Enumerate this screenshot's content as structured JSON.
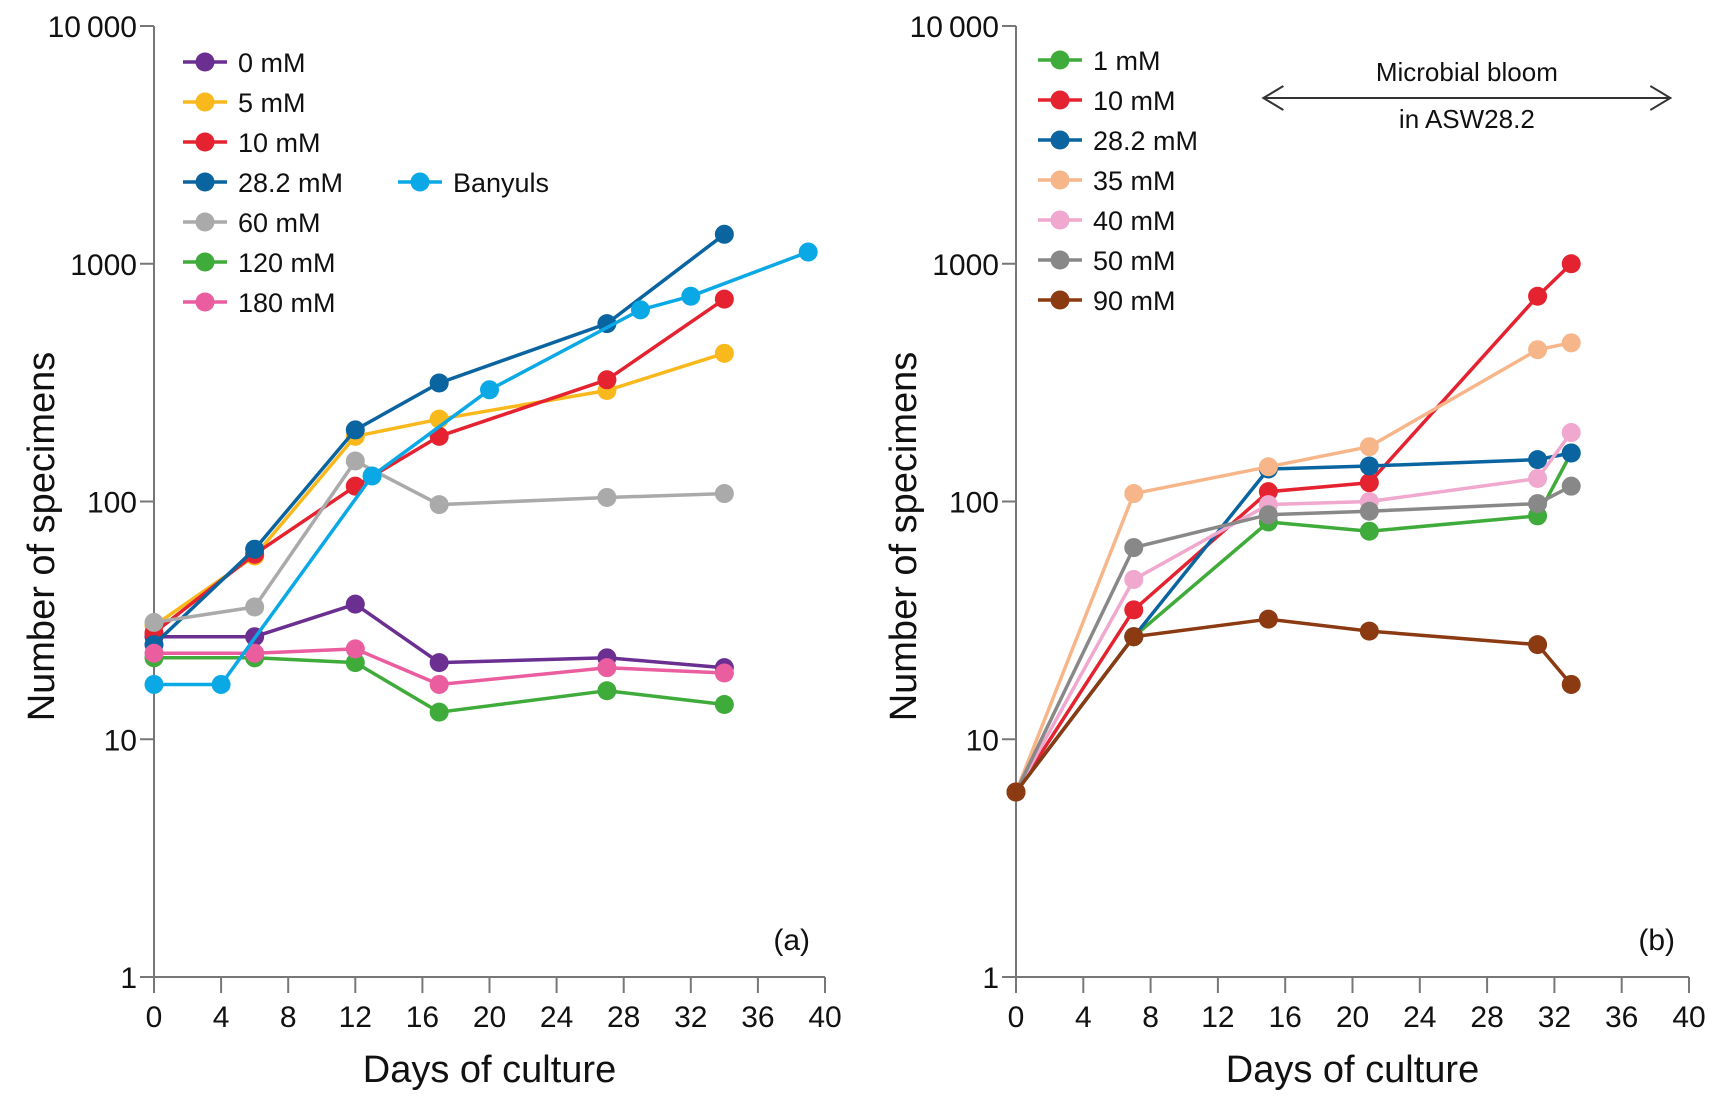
{
  "chart_data": [
    {
      "type": "line",
      "panel_label": "(a)",
      "title": "",
      "xlabel": "Days of culture",
      "ylabel": "Number of specimens",
      "xlim": [
        0,
        40
      ],
      "xticks": [
        0,
        4,
        8,
        12,
        16,
        20,
        24,
        28,
        32,
        36,
        40
      ],
      "yscale": "log",
      "ylim": [
        1,
        10000
      ],
      "yticks": [
        1,
        10,
        100,
        1000,
        10000
      ],
      "ytick_labels": [
        "1",
        "10",
        "100",
        "1000",
        "10 000"
      ],
      "grid": false,
      "legend_position": "top-left",
      "series": [
        {
          "name": "0 mM",
          "color": "#6a2f91",
          "x": [
            0,
            6,
            12,
            17,
            27,
            34
          ],
          "y": [
            27,
            27,
            37,
            21,
            22,
            20
          ]
        },
        {
          "name": "5 mM",
          "color": "#f9b81b",
          "x": [
            0,
            6,
            12,
            17,
            27,
            34
          ],
          "y": [
            30,
            59,
            188,
            222,
            293,
            420
          ]
        },
        {
          "name": "10 mM",
          "color": "#e52330",
          "x": [
            0,
            6,
            12,
            17,
            27,
            34
          ],
          "y": [
            28,
            60,
            116,
            188,
            325,
            710
          ]
        },
        {
          "name": "28.2 mM",
          "color": "#0a64a0",
          "x": [
            0,
            6,
            12,
            17,
            27,
            34
          ],
          "y": [
            25,
            63,
            200,
            315,
            560,
            1330
          ]
        },
        {
          "name": "60 mM",
          "color": "#aaaaaa",
          "x": [
            0,
            6,
            12,
            17,
            27,
            34
          ],
          "y": [
            31,
            36,
            148,
            97,
            104,
            108
          ]
        },
        {
          "name": "120 mM",
          "color": "#3fab3a",
          "x": [
            0,
            6,
            12,
            17,
            27,
            34
          ],
          "y": [
            22,
            22,
            21,
            13,
            16,
            14
          ]
        },
        {
          "name": "180 mM",
          "color": "#ea5ea0",
          "x": [
            0,
            6,
            12,
            17,
            27,
            34
          ],
          "y": [
            23,
            23,
            24,
            17,
            20,
            19
          ]
        },
        {
          "name": "Banyuls",
          "color": "#0aa9e6",
          "x": [
            0,
            4,
            13,
            20,
            29,
            32,
            39
          ],
          "y": [
            17,
            17,
            128,
            295,
            640,
            730,
            1120
          ]
        }
      ]
    },
    {
      "type": "line",
      "panel_label": "(b)",
      "title": "",
      "xlabel": "Days of culture",
      "ylabel": "Number of specimens",
      "xlim": [
        0,
        40
      ],
      "xticks": [
        0,
        4,
        8,
        12,
        16,
        20,
        24,
        28,
        32,
        36,
        40
      ],
      "yscale": "log",
      "ylim": [
        1,
        10000
      ],
      "yticks": [
        1,
        10,
        100,
        1000,
        10000
      ],
      "ytick_labels": [
        "1",
        "10",
        "100",
        "1000",
        "10 000"
      ],
      "grid": false,
      "legend_position": "top-left",
      "annotation": {
        "line1": "Microbial bloom",
        "line2": "in ASW28.2",
        "x_range": [
          15,
          38
        ]
      },
      "series": [
        {
          "name": "1 mM",
          "color": "#3fab3a",
          "x": [
            0,
            7,
            15,
            21,
            31,
            33
          ],
          "y": [
            6,
            27,
            82,
            75,
            87,
            160
          ]
        },
        {
          "name": "10 mM",
          "color": "#e52330",
          "x": [
            0,
            7,
            15,
            21,
            31,
            33
          ],
          "y": [
            6,
            35,
            110,
            120,
            730,
            1000
          ]
        },
        {
          "name": "28.2 mM",
          "color": "#0a64a0",
          "x": [
            0,
            7,
            15,
            21,
            31,
            33
          ],
          "y": [
            6,
            27,
            137,
            141,
            150,
            160
          ]
        },
        {
          "name": "35 mM",
          "color": "#f7b68a",
          "x": [
            0,
            7,
            15,
            21,
            31,
            33
          ],
          "y": [
            6,
            108,
            140,
            170,
            435,
            465
          ]
        },
        {
          "name": "40 mM",
          "color": "#f0a8cf",
          "x": [
            0,
            7,
            15,
            21,
            31,
            33
          ],
          "y": [
            6,
            47,
            97,
            100,
            125,
            195
          ]
        },
        {
          "name": "50 mM",
          "color": "#888888",
          "x": [
            0,
            7,
            15,
            21,
            31,
            33
          ],
          "y": [
            6,
            64,
            88,
            91,
            98,
            116
          ]
        },
        {
          "name": "90 mM",
          "color": "#8b3a12",
          "x": [
            0,
            7,
            15,
            21,
            31,
            33
          ],
          "y": [
            6,
            27,
            32,
            28.5,
            25,
            17
          ]
        }
      ]
    }
  ]
}
